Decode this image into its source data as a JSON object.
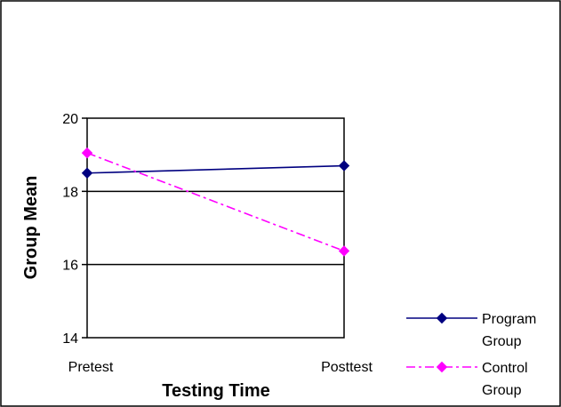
{
  "chart_data": {
    "type": "line",
    "categories": [
      "Pretest",
      "Posttest"
    ],
    "series": [
      {
        "name": "Program Group",
        "name_lines": [
          "Program",
          "Group"
        ],
        "values": [
          18.5,
          18.7
        ],
        "color": "#000080",
        "line_style": "solid",
        "marker": "diamond"
      },
      {
        "name": "Control Group",
        "name_lines": [
          "Control",
          "Group"
        ],
        "values": [
          19.05,
          16.37
        ],
        "color": "#FF00FF",
        "line_style": "dash-dot",
        "marker": "diamond"
      }
    ],
    "xlabel": "Testing Time",
    "ylabel": "Group Mean",
    "ylim": [
      14,
      20
    ],
    "yticks": [
      "14",
      "16",
      "18",
      "20"
    ],
    "grid": true,
    "legend_position": "bottom-right"
  }
}
